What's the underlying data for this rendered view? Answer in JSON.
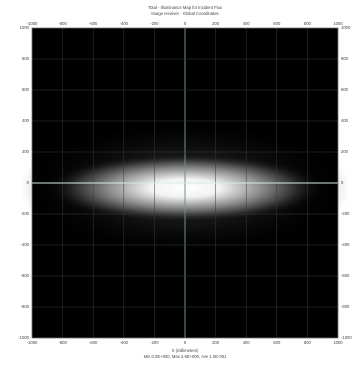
{
  "chart_data": {
    "type": "heatmap",
    "title": "Total - Illuminance Map for Incident Flux",
    "subtitle": "Image receiver - Global Coordinates",
    "x_label": "X (millimeters)",
    "footer": "Min 0.0E+000, Max 2.6E+000, Ave 1.0E-001",
    "xlim": [
      -1000,
      1000
    ],
    "ylim": [
      -1000,
      1000
    ],
    "xticks": [
      -1000,
      -800,
      -600,
      -400,
      -200,
      0,
      200,
      400,
      600,
      800,
      1000
    ],
    "yticks": [
      -1000,
      -800,
      -600,
      -400,
      -200,
      0,
      200,
      400,
      600,
      800,
      1000
    ],
    "grid": true
  }
}
